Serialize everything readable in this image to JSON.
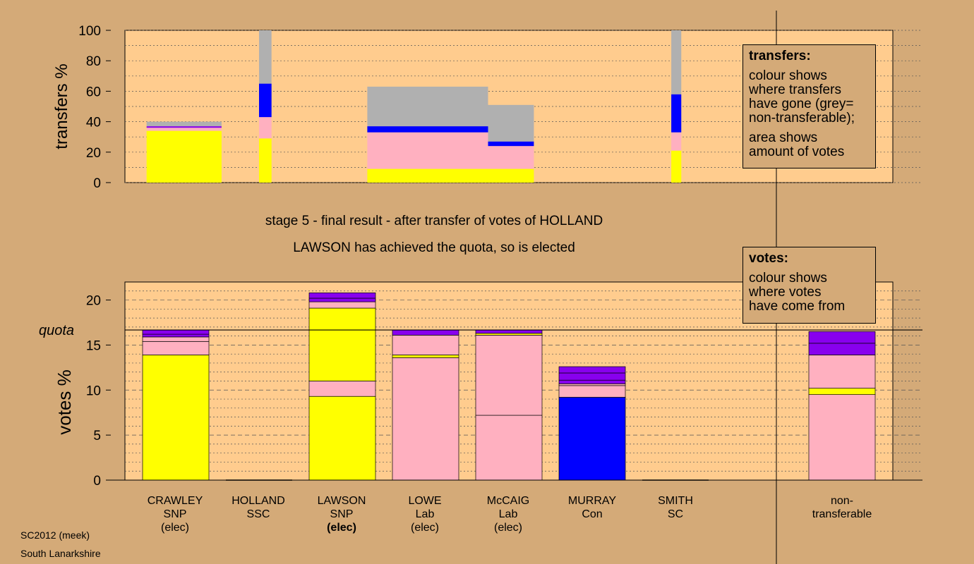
{
  "colors": {
    "background": "#d4aa78",
    "panel": "#ffcc8e",
    "snp": "#ffff00",
    "lab": "#ffb0c0",
    "con": "#0000ff",
    "other": "#8800ee",
    "nontransferable": "#b0b0b0"
  },
  "captions": {
    "stage": "stage 5 - final result - after transfer of votes of HOLLAND",
    "result": "LAWSON has achieved the quota, so is elected"
  },
  "transfers_legend": {
    "title": "transfers:",
    "text1": "colour shows\nwhere transfers\nhave gone (grey=\nnon-transferable);",
    "text2": "area shows\namount of votes"
  },
  "votes_legend": {
    "title": "votes:",
    "text1": "colour shows\nwhere votes\nhave come from"
  },
  "footer": {
    "line1": "SC2012 (meek)",
    "line2": "South Lanarkshire"
  },
  "candidates": [
    {
      "name": "CRAWLEY",
      "party": "SNP",
      "status": "(elec)"
    },
    {
      "name": "HOLLAND",
      "party": "SSC",
      "status": ""
    },
    {
      "name": "LAWSON",
      "party": "SNP",
      "status": "(elec)"
    },
    {
      "name": "LOWE",
      "party": "Lab",
      "status": "(elec)"
    },
    {
      "name": "McCAIG",
      "party": "Lab",
      "status": "(elec)"
    },
    {
      "name": "MURRAY",
      "party": "Con",
      "status": ""
    },
    {
      "name": "SMITH",
      "party": "SC",
      "status": ""
    },
    {
      "name": "non-",
      "party": "transferable",
      "status": ""
    }
  ],
  "chart_data": [
    {
      "type": "bar",
      "ylabel": "transfers %",
      "ylim": [
        0,
        100
      ],
      "yticks": [
        0,
        20,
        40,
        60,
        80,
        100
      ],
      "bars": [
        {
          "x_from": 0.15,
          "x_to": 1.05,
          "segments": [
            {
              "color": "snp",
              "from": 0,
              "to": 34
            },
            {
              "color": "lab",
              "from": 34,
              "to": 36
            },
            {
              "color": "other",
              "from": 36,
              "to": 37
            },
            {
              "color": "nontransferable",
              "from": 37,
              "to": 40
            }
          ]
        },
        {
          "x_from": 1.5,
          "x_to": 1.65,
          "segments": [
            {
              "color": "snp",
              "from": 0,
              "to": 29
            },
            {
              "color": "lab",
              "from": 29,
              "to": 43
            },
            {
              "color": "con",
              "from": 43,
              "to": 65
            },
            {
              "color": "nontransferable",
              "from": 65,
              "to": 100
            }
          ]
        },
        {
          "x_from": 2.8,
          "x_to": 4.25,
          "segments": [
            {
              "color": "snp",
              "from": 0,
              "to": 9
            },
            {
              "color": "lab",
              "from": 9,
              "to": 33
            },
            {
              "color": "con",
              "from": 33,
              "to": 37
            },
            {
              "color": "nontransferable",
              "from": 37,
              "to": 63
            }
          ]
        },
        {
          "x_from": 4.25,
          "x_to": 4.8,
          "segments": [
            {
              "color": "snp",
              "from": 0,
              "to": 9
            },
            {
              "color": "lab",
              "from": 9,
              "to": 24
            },
            {
              "color": "con",
              "from": 24,
              "to": 27
            },
            {
              "color": "nontransferable",
              "from": 27,
              "to": 51
            }
          ]
        },
        {
          "x_from": 6.45,
          "x_to": 6.57,
          "segments": [
            {
              "color": "snp",
              "from": 0,
              "to": 21
            },
            {
              "color": "lab",
              "from": 21,
              "to": 33
            },
            {
              "color": "con",
              "from": 33,
              "to": 58
            },
            {
              "color": "nontransferable",
              "from": 58,
              "to": 100
            }
          ]
        }
      ]
    },
    {
      "type": "bar",
      "ylabel": "votes %",
      "ylim": [
        0,
        22
      ],
      "yticks": [
        0,
        5,
        10,
        15,
        20
      ],
      "quota_label": "quota",
      "quota": 16.67,
      "categories": [
        "CRAWLEY",
        "HOLLAND",
        "LAWSON",
        "LOWE",
        "McCAIG",
        "MURRAY",
        "SMITH",
        "non-transferable"
      ],
      "bars": [
        {
          "segments": [
            {
              "color": "snp",
              "from": 0,
              "to": 13.9
            },
            {
              "color": "lab",
              "from": 13.9,
              "to": 15.4
            },
            {
              "color": "lab",
              "from": 15.4,
              "to": 15.9
            },
            {
              "color": "other",
              "from": 15.9,
              "to": 16.2
            },
            {
              "color": "other",
              "from": 16.2,
              "to": 16.67
            }
          ]
        },
        {
          "segments": []
        },
        {
          "segments": [
            {
              "color": "snp",
              "from": 0,
              "to": 9.3
            },
            {
              "color": "lab",
              "from": 9.3,
              "to": 11.0
            },
            {
              "color": "snp",
              "from": 11.0,
              "to": 19.1
            },
            {
              "color": "lab",
              "from": 19.1,
              "to": 19.8
            },
            {
              "color": "other",
              "from": 19.8,
              "to": 20.2
            },
            {
              "color": "other",
              "from": 20.2,
              "to": 20.8
            }
          ]
        },
        {
          "segments": [
            {
              "color": "lab",
              "from": 0,
              "to": 13.6
            },
            {
              "color": "snp",
              "from": 13.6,
              "to": 13.9
            },
            {
              "color": "lab",
              "from": 13.9,
              "to": 16.1
            },
            {
              "color": "other",
              "from": 16.1,
              "to": 16.67
            }
          ]
        },
        {
          "segments": [
            {
              "color": "lab",
              "from": 0,
              "to": 7.2
            },
            {
              "color": "lab",
              "from": 7.2,
              "to": 16.1
            },
            {
              "color": "snp",
              "from": 16.1,
              "to": 16.3
            },
            {
              "color": "other",
              "from": 16.3,
              "to": 16.67
            }
          ]
        },
        {
          "segments": [
            {
              "color": "con",
              "from": 0,
              "to": 9.2
            },
            {
              "color": "lab",
              "from": 9.2,
              "to": 10.5
            },
            {
              "color": "lab",
              "from": 10.5,
              "to": 10.7
            },
            {
              "color": "other",
              "from": 10.7,
              "to": 11.1
            },
            {
              "color": "other",
              "from": 11.1,
              "to": 11.9
            },
            {
              "color": "other",
              "from": 11.9,
              "to": 12.6
            }
          ]
        },
        {
          "segments": []
        },
        {
          "segments": [
            {
              "color": "lab",
              "from": 0,
              "to": 9.5
            },
            {
              "color": "snp",
              "from": 9.5,
              "to": 10.2
            },
            {
              "color": "lab",
              "from": 10.2,
              "to": 13.9
            },
            {
              "color": "other",
              "from": 13.9,
              "to": 15.2
            },
            {
              "color": "other",
              "from": 15.2,
              "to": 16.5
            }
          ]
        }
      ]
    }
  ]
}
